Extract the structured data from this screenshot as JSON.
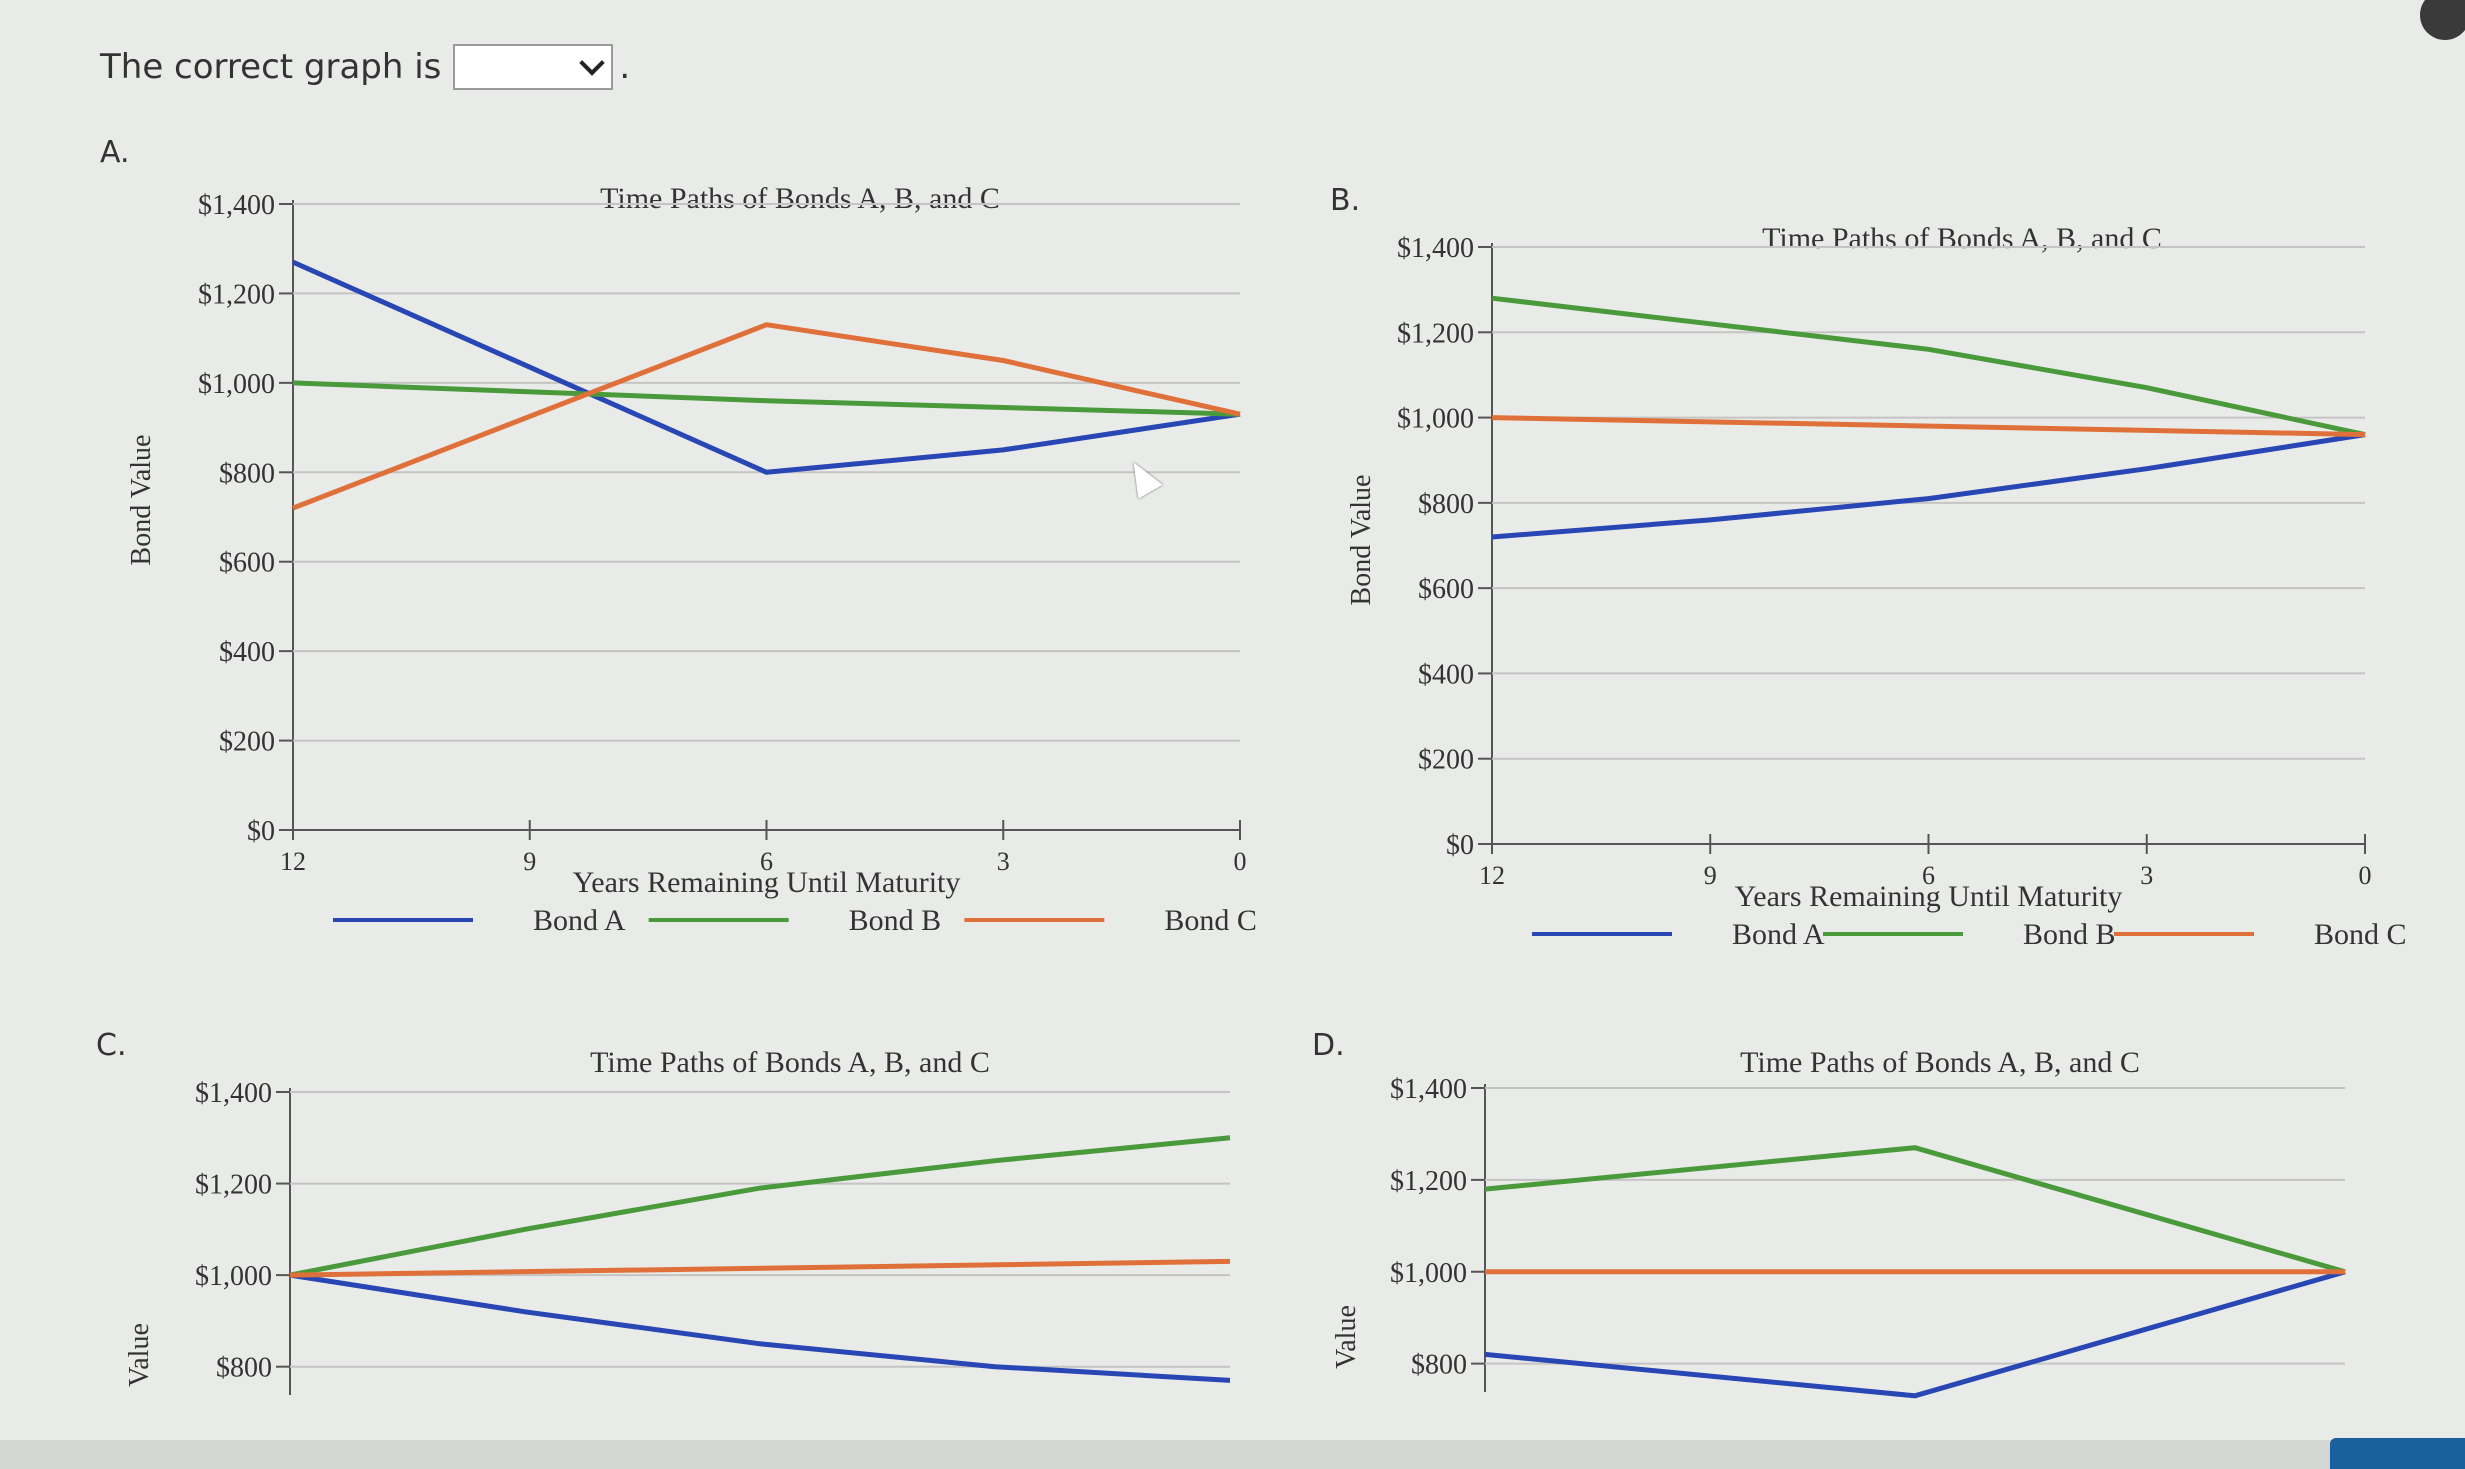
{
  "prompt": {
    "text": "The correct graph is",
    "dropdown_value": "",
    "period": "."
  },
  "options": [
    "A.",
    "B.",
    "C.",
    "D."
  ],
  "colors": {
    "bond_a": "#2846b4",
    "bond_b": "#4a9a3c",
    "bond_c": "#e0703a"
  },
  "chart_data": [
    {
      "type": "line",
      "title": "Time Paths of Bonds A, B, and C",
      "xlabel": "Years Remaining Until Maturity",
      "ylabel": "Bond Value",
      "x_ticks": [
        12,
        9,
        6,
        3,
        0
      ],
      "xlim": [
        12,
        0
      ],
      "y_ticks": [
        "$0",
        "$200",
        "$400",
        "$600",
        "$800",
        "$1,000",
        "$1,200",
        "$1,400"
      ],
      "ylim": [
        0,
        1400
      ],
      "legend": "bottom",
      "series": [
        {
          "name": "Bond A",
          "color": "#2846b4",
          "x": [
            12,
            6,
            3,
            0
          ],
          "y": [
            1270,
            800,
            850,
            930
          ]
        },
        {
          "name": "Bond B",
          "color": "#4a9a3c",
          "x": [
            12,
            6,
            0
          ],
          "y": [
            1000,
            960,
            930
          ]
        },
        {
          "name": "Bond C",
          "color": "#e0703a",
          "x": [
            12,
            6,
            3,
            0
          ],
          "y": [
            720,
            1130,
            1050,
            930
          ]
        }
      ]
    },
    {
      "type": "line",
      "title": "Time Paths of Bonds A, B, and C",
      "xlabel": "Years Remaining Until Maturity",
      "ylabel": "Bond Value",
      "x_ticks": [
        12,
        9,
        6,
        3,
        0
      ],
      "xlim": [
        12,
        0
      ],
      "y_ticks": [
        "$0",
        "$200",
        "$400",
        "$600",
        "$800",
        "$1,000",
        "$1,200",
        "$1,400"
      ],
      "ylim": [
        0,
        1400
      ],
      "legend": "bottom",
      "series": [
        {
          "name": "Bond A",
          "color": "#2846b4",
          "x": [
            12,
            9,
            6,
            3,
            0
          ],
          "y": [
            720,
            760,
            810,
            880,
            960
          ]
        },
        {
          "name": "Bond B",
          "color": "#4a9a3c",
          "x": [
            12,
            9,
            6,
            3,
            0
          ],
          "y": [
            1280,
            1220,
            1160,
            1070,
            960
          ]
        },
        {
          "name": "Bond C",
          "color": "#e0703a",
          "x": [
            12,
            0
          ],
          "y": [
            1000,
            960
          ]
        }
      ]
    },
    {
      "type": "line",
      "title": "Time Paths of Bonds A, B, and C",
      "xlabel": "",
      "ylabel": "Value",
      "x_ticks": [],
      "xlim": [
        12,
        0
      ],
      "y_ticks": [
        "$800",
        "$1,000",
        "$1,200",
        "$1,400"
      ],
      "ylim": [
        760,
        1400
      ],
      "legend": "none",
      "series": [
        {
          "name": "",
          "color": "#2846b4",
          "x": [
            12,
            9,
            6,
            3,
            0
          ],
          "y": [
            1000,
            920,
            850,
            800,
            770
          ]
        },
        {
          "name": "",
          "color": "#4a9a3c",
          "x": [
            12,
            9,
            6,
            3,
            0
          ],
          "y": [
            1000,
            1100,
            1190,
            1250,
            1300
          ]
        },
        {
          "name": "",
          "color": "#e0703a",
          "x": [
            12,
            0
          ],
          "y": [
            1000,
            1030
          ]
        }
      ]
    },
    {
      "type": "line",
      "title": "Time Paths of Bonds A, B, and C",
      "xlabel": "",
      "ylabel": "Value",
      "x_ticks": [],
      "xlim": [
        12,
        0
      ],
      "y_ticks": [
        "$800",
        "$1,000",
        "$1,200",
        "$1,400"
      ],
      "ylim": [
        760,
        1400
      ],
      "legend": "none",
      "series": [
        {
          "name": "",
          "color": "#2846b4",
          "x": [
            12,
            6,
            0
          ],
          "y": [
            820,
            730,
            1000
          ]
        },
        {
          "name": "",
          "color": "#4a9a3c",
          "x": [
            12,
            6,
            0
          ],
          "y": [
            1180,
            1270,
            1000
          ]
        },
        {
          "name": "",
          "color": "#e0703a",
          "x": [
            12,
            0
          ],
          "y": [
            1000,
            1000
          ]
        }
      ]
    }
  ]
}
